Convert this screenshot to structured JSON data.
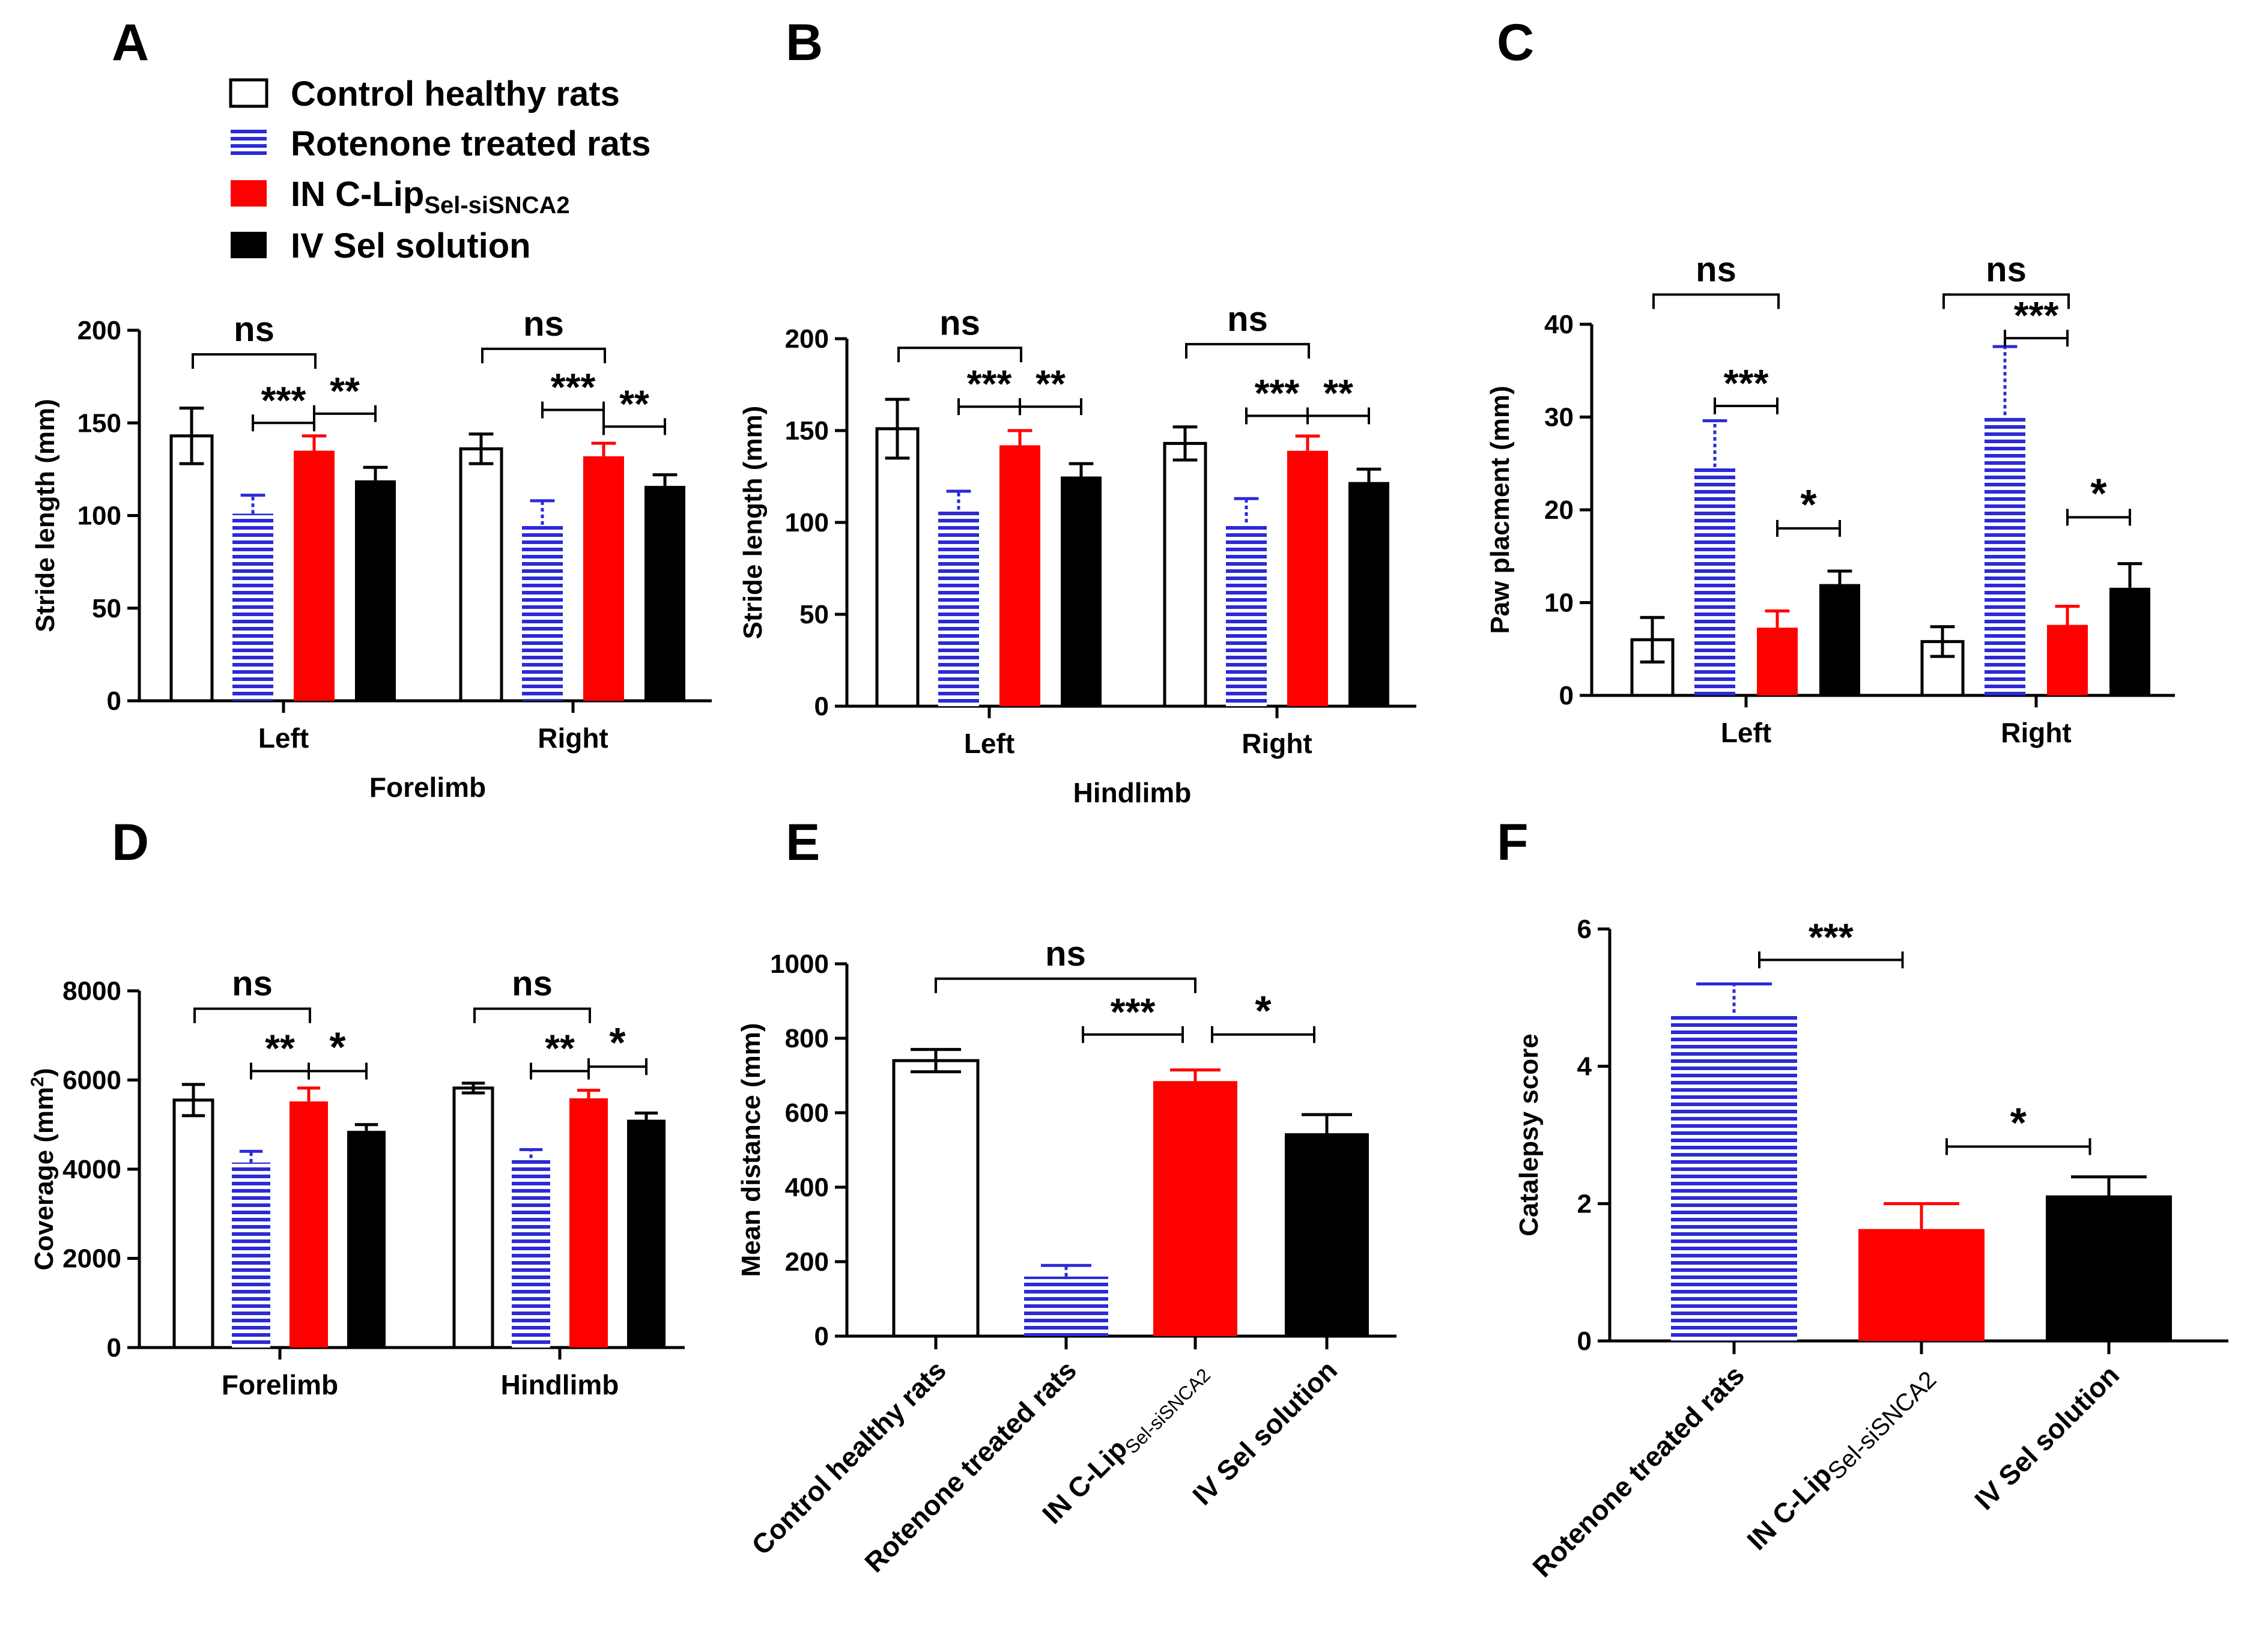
{
  "figure": {
    "legend": [
      {
        "main": "Control healthy rats",
        "sub": "",
        "style": "white"
      },
      {
        "main": "Rotenone treated rats",
        "sub": "",
        "style": "hatch"
      },
      {
        "main": "IN C-Lip",
        "sub": "Sel-siSNCA2",
        "style": "red"
      },
      {
        "main": "IV Sel solution",
        "sub": "",
        "style": "black"
      }
    ],
    "colors": {
      "red": "#ff0000",
      "black": "#000000",
      "hatch_stripe": "#2b2bd6",
      "white": "#ffffff"
    }
  },
  "chart_data": [
    {
      "panel": "A",
      "type": "bar",
      "ylabel": "Stride length (mm)",
      "xlabel": "Forelimb",
      "ylim": [
        0,
        200
      ],
      "yticks": [
        0,
        50,
        100,
        150,
        200
      ],
      "ytick_labels": [
        "0",
        "50",
        "100",
        "150",
        "200"
      ],
      "groups": [
        "Left",
        "Right"
      ],
      "series": [
        {
          "name": "Control healthy rats",
          "style": "white",
          "values": [
            143,
            136
          ],
          "errors": [
            15,
            8
          ]
        },
        {
          "name": "Rotenone treated rats",
          "style": "hatch",
          "values": [
            101,
            95
          ],
          "errors": [
            10,
            13
          ]
        },
        {
          "name": "IN C-Lip Sel-siSNCA2",
          "style": "red",
          "values": [
            135,
            132
          ],
          "errors": [
            8,
            7
          ]
        },
        {
          "name": "IV Sel solution",
          "style": "black",
          "values": [
            119,
            116
          ],
          "errors": [
            7,
            6
          ]
        }
      ],
      "annotations": [
        {
          "label": "ns",
          "group": 0,
          "from": 0,
          "to": 2,
          "y": 187,
          "type": "bracket"
        },
        {
          "label": "***",
          "group": 0,
          "from": 1,
          "to": 2,
          "y": 150,
          "type": "tbar"
        },
        {
          "label": "**",
          "group": 0,
          "from": 2,
          "to": 3,
          "y": 155,
          "type": "tbar"
        },
        {
          "label": "ns",
          "group": 1,
          "from": 0,
          "to": 2,
          "y": 190,
          "type": "bracket"
        },
        {
          "label": "***",
          "group": 1,
          "from": 1,
          "to": 2,
          "y": 157,
          "type": "tbar"
        },
        {
          "label": "**",
          "group": 1,
          "from": 2,
          "to": 3,
          "y": 148,
          "type": "tbar"
        }
      ]
    },
    {
      "panel": "B",
      "type": "bar",
      "ylabel": "Stride length (mm)",
      "xlabel": "Hindlimb",
      "ylim": [
        0,
        200
      ],
      "yticks": [
        0,
        50,
        100,
        150,
        200
      ],
      "ytick_labels": [
        "0",
        "50",
        "100",
        "150",
        "200"
      ],
      "groups": [
        "Left",
        "Right"
      ],
      "series": [
        {
          "name": "Control healthy rats",
          "style": "white",
          "values": [
            151,
            143
          ],
          "errors": [
            16,
            9
          ]
        },
        {
          "name": "Rotenone treated rats",
          "style": "hatch",
          "values": [
            107,
            100
          ],
          "errors": [
            10,
            13
          ]
        },
        {
          "name": "IN C-Lip Sel-siSNCA2",
          "style": "red",
          "values": [
            142,
            139
          ],
          "errors": [
            8,
            8
          ]
        },
        {
          "name": "IV Sel solution",
          "style": "black",
          "values": [
            125,
            122
          ],
          "errors": [
            7,
            7
          ]
        }
      ],
      "annotations": [
        {
          "label": "ns",
          "group": 0,
          "from": 0,
          "to": 2,
          "y": 195,
          "type": "bracket"
        },
        {
          "label": "***",
          "group": 0,
          "from": 1,
          "to": 2,
          "y": 163,
          "type": "tbar"
        },
        {
          "label": "**",
          "group": 0,
          "from": 2,
          "to": 3,
          "y": 163,
          "type": "tbar"
        },
        {
          "label": "ns",
          "group": 1,
          "from": 0,
          "to": 2,
          "y": 197,
          "type": "bracket"
        },
        {
          "label": "***",
          "group": 1,
          "from": 1,
          "to": 2,
          "y": 158,
          "type": "tbar"
        },
        {
          "label": "**",
          "group": 1,
          "from": 2,
          "to": 3,
          "y": 158,
          "type": "tbar"
        }
      ]
    },
    {
      "panel": "C",
      "type": "bar",
      "ylabel": "Paw placment (mm)",
      "xlabel": "",
      "ylim": [
        0,
        40
      ],
      "yticks": [
        0,
        10,
        20,
        30,
        40
      ],
      "ytick_labels": [
        "0",
        "10",
        "20",
        "30",
        "40"
      ],
      "groups": [
        "Left",
        "Right"
      ],
      "series": [
        {
          "name": "Control healthy rats",
          "style": "white",
          "values": [
            6,
            5.8
          ],
          "errors": [
            2.4,
            1.6
          ]
        },
        {
          "name": "Rotenone treated rats",
          "style": "hatch",
          "values": [
            24.6,
            30.2
          ],
          "errors": [
            5,
            7.4
          ]
        },
        {
          "name": "IN C-Lip Sel-siSNCA2",
          "style": "red",
          "values": [
            7.3,
            7.6
          ],
          "errors": [
            1.8,
            2
          ]
        },
        {
          "name": "IV Sel solution",
          "style": "black",
          "values": [
            12,
            11.6
          ],
          "errors": [
            1.4,
            2.6
          ]
        }
      ],
      "annotations": [
        {
          "label": "ns",
          "group": 0,
          "from": 0,
          "to": 2,
          "y": 43.2,
          "type": "bracket"
        },
        {
          "label": "***",
          "group": 0,
          "from": 1,
          "to": 2,
          "y": 31.2,
          "type": "tbar"
        },
        {
          "label": "*",
          "group": 0,
          "from": 2,
          "to": 3,
          "y": 18,
          "type": "tbar"
        },
        {
          "label": "ns",
          "group": 1,
          "from": 0,
          "to": 2,
          "y": 43.2,
          "type": "bracket"
        },
        {
          "label": "***",
          "group": 1,
          "from": 1,
          "to": 2,
          "y": 38.5,
          "type": "tbar"
        },
        {
          "label": "*",
          "group": 1,
          "from": 2,
          "to": 3,
          "y": 19.2,
          "type": "tbar"
        }
      ]
    },
    {
      "panel": "D",
      "type": "bar",
      "ylabel": "Coverage (mm",
      "ylabel_sup": "2",
      "ylabel_end": ")",
      "xlabel": "",
      "ylim": [
        0,
        8000
      ],
      "yticks": [
        0,
        2000,
        4000,
        6000,
        8000
      ],
      "ytick_labels": [
        "0",
        "2000",
        "4000",
        "6000",
        "8000"
      ],
      "groups": [
        "Forelimb",
        "Hindlimb"
      ],
      "series": [
        {
          "name": "Control healthy rats",
          "style": "white",
          "values": [
            5550,
            5820
          ],
          "errors": [
            350,
            110
          ]
        },
        {
          "name": "Rotenone treated rats",
          "style": "hatch",
          "values": [
            4150,
            4250
          ],
          "errors": [
            250,
            190
          ]
        },
        {
          "name": "IN C-Lip Sel-siSNCA2",
          "style": "red",
          "values": [
            5520,
            5590
          ],
          "errors": [
            300,
            180
          ]
        },
        {
          "name": "IV Sel solution",
          "style": "black",
          "values": [
            4860,
            5110
          ],
          "errors": [
            140,
            150
          ]
        }
      ],
      "annotations": [
        {
          "label": "ns",
          "group": 0,
          "from": 0,
          "to": 2,
          "y": 7600,
          "type": "bracket"
        },
        {
          "label": "**",
          "group": 0,
          "from": 1,
          "to": 2,
          "y": 6200,
          "type": "tbar"
        },
        {
          "label": "*",
          "group": 0,
          "from": 2,
          "to": 3,
          "y": 6200,
          "type": "tbar"
        },
        {
          "label": "ns",
          "group": 1,
          "from": 0,
          "to": 2,
          "y": 7600,
          "type": "bracket"
        },
        {
          "label": "**",
          "group": 1,
          "from": 1,
          "to": 2,
          "y": 6200,
          "type": "tbar"
        },
        {
          "label": "*",
          "group": 1,
          "from": 2,
          "to": 3,
          "y": 6300,
          "type": "tbar"
        }
      ]
    },
    {
      "panel": "E",
      "type": "bar",
      "ylabel": "Mean distance (mm)",
      "xlabel": "",
      "ylim": [
        0,
        1000
      ],
      "yticks": [
        0,
        200,
        400,
        600,
        800,
        1000
      ],
      "ytick_labels": [
        "0",
        "200",
        "400",
        "600",
        "800",
        "1000"
      ],
      "categories": [
        {
          "main": "Control healthy rats",
          "sub": ""
        },
        {
          "main": "Rotenone treated rats",
          "sub": ""
        },
        {
          "main": "IN C-Lip",
          "sub": "Sel-siSNCA2"
        },
        {
          "main": "IV Sel solution",
          "sub": ""
        }
      ],
      "styles": [
        "white",
        "hatch",
        "red",
        "black"
      ],
      "values": [
        740,
        160,
        685,
        545
      ],
      "errors": [
        30,
        30,
        30,
        50
      ],
      "annotations": [
        {
          "label": "ns",
          "from": 0,
          "to": 2,
          "y": 960,
          "type": "bracket"
        },
        {
          "label": "***",
          "from": 1,
          "to": 2,
          "y": 810,
          "type": "tbar"
        },
        {
          "label": "*",
          "from": 2,
          "to": 3,
          "y": 810,
          "type": "tbar"
        }
      ]
    },
    {
      "panel": "F",
      "type": "bar",
      "ylabel": "Catalepsy score",
      "xlabel": "",
      "ylim": [
        0,
        6
      ],
      "yticks": [
        0,
        2,
        4,
        6
      ],
      "ytick_labels": [
        "0",
        "2",
        "4",
        "6"
      ],
      "categories": [
        {
          "main": "Rotenone treated rats",
          "sub": ""
        },
        {
          "main": "IN C-Lip",
          "sub": "Sel-siSNCA2"
        },
        {
          "main": "IV Sel solution",
          "sub": ""
        }
      ],
      "styles": [
        "hatch",
        "red",
        "black"
      ],
      "values": [
        4.78,
        1.63,
        2.12
      ],
      "errors": [
        0.42,
        0.37,
        0.27
      ],
      "annotations": [
        {
          "label": "***",
          "from": 0,
          "to": 1,
          "y": 5.55,
          "type": "tbar"
        },
        {
          "label": "*",
          "from": 1,
          "to": 2,
          "y": 2.83,
          "type": "tbar"
        }
      ]
    }
  ]
}
